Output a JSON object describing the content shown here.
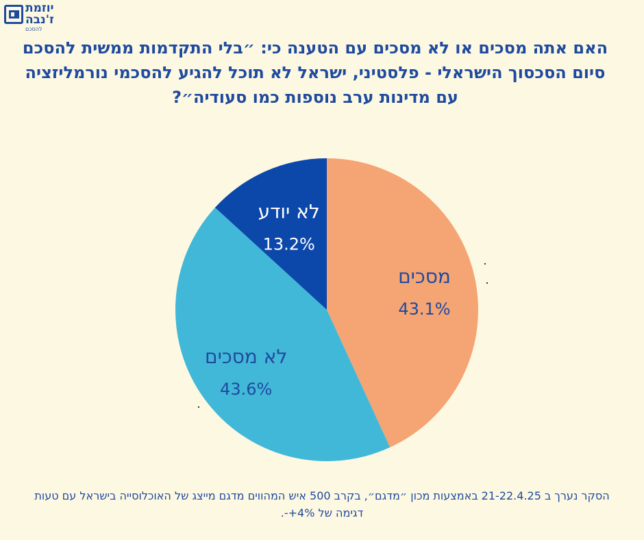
{
  "logo": {
    "line1": "יוזמת",
    "line2": "ז'נבה",
    "line3": "להסכם"
  },
  "header": {
    "title": "האם אתה מסכים או לא מסכים עם הטענה כי: ״בלי התקדמות ממשית להסכם סיום הסכסוך הישראלי - פלסטיני, ישראל לא תוכל להגיע להסכמי נורמליזציה עם מדינות ערב נוספות כמו סעודיה״?"
  },
  "chart_data": {
    "type": "pie",
    "title": "",
    "slices": [
      {
        "label": "מסכים",
        "value": 43.1,
        "display": "43.1%",
        "color": "#f5a474",
        "text_color": "#1e4a9e"
      },
      {
        "label": "לא מסכים",
        "value": 43.6,
        "display": "43.6%",
        "color": "#42b8d8",
        "text_color": "#1e4a9e"
      },
      {
        "label": "לא יודע",
        "value": 13.2,
        "display": "13.2%",
        "color": "#0c47aa",
        "text_color": "#ffffff"
      }
    ]
  },
  "footer": {
    "note": "הסקר נערך ב 21-22.4.25 באמצעות מכון ״מדגם״, בקרב 500 איש המהווים מדגם מייצג של האוכלוסייה בישראל עם טעות דגימה של 4%+-."
  }
}
